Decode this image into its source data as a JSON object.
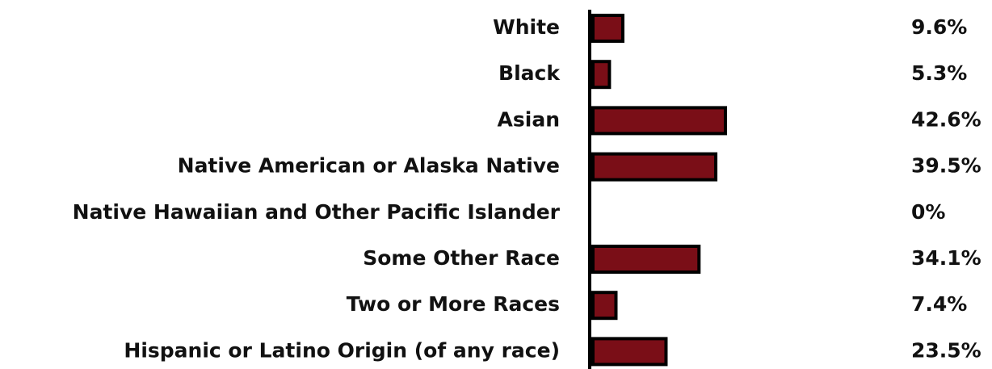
{
  "chart_data": {
    "type": "barh",
    "categories": [
      "White",
      "Black",
      "Asian",
      "Native American or Alaska Native",
      "Native Hawaiian and Other Pacific Islander",
      "Some Other Race",
      "Two or More Races",
      "Hispanic or Latino Origin (of any race)"
    ],
    "values": [
      9.6,
      5.3,
      42.6,
      39.5,
      0,
      34.1,
      7.4,
      23.5
    ],
    "value_labels": [
      "9.6%",
      "5.3%",
      "42.6%",
      "39.5%",
      "0%",
      "34.1%",
      "7.4%",
      "23.5%"
    ],
    "color": "#7a0e17"
  }
}
